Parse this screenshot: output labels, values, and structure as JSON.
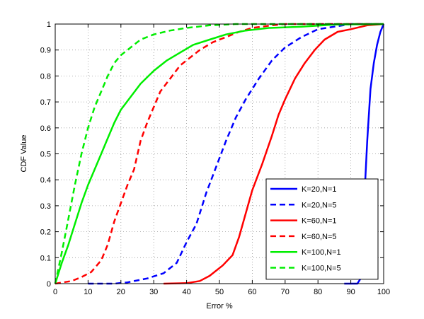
{
  "chart_data": {
    "type": "line",
    "title": "",
    "xlabel": "Error %",
    "ylabel": "CDF Value",
    "xlim": [
      0,
      100
    ],
    "ylim": [
      0,
      1
    ],
    "xticks": [
      "0",
      "10",
      "20",
      "30",
      "40",
      "50",
      "60",
      "70",
      "80",
      "90",
      "100"
    ],
    "yticks": [
      "0",
      "0.1",
      "0.2",
      "0.3",
      "0.4",
      "0.5",
      "0.6",
      "0.7",
      "0.8",
      "0.9",
      "1"
    ],
    "grid": true,
    "legend_position": "bottom-right",
    "series": [
      {
        "name": "K=20,N=1",
        "color": "#0000ff",
        "style": "solid",
        "points": [
          [
            88,
            0
          ],
          [
            92,
            0
          ],
          [
            93,
            0.02
          ],
          [
            93.5,
            0.1
          ],
          [
            94,
            0.3
          ],
          [
            95,
            0.55
          ],
          [
            96,
            0.75
          ],
          [
            97,
            0.85
          ],
          [
            98,
            0.92
          ],
          [
            99,
            0.97
          ],
          [
            100,
            1.0
          ]
        ]
      },
      {
        "name": "K=20,N=5",
        "color": "#0000ff",
        "style": "dashed",
        "points": [
          [
            10,
            0
          ],
          [
            18,
            0
          ],
          [
            22,
            0.005
          ],
          [
            28,
            0.02
          ],
          [
            33,
            0.04
          ],
          [
            37,
            0.08
          ],
          [
            40,
            0.16
          ],
          [
            43,
            0.23
          ],
          [
            46,
            0.35
          ],
          [
            49,
            0.45
          ],
          [
            52,
            0.55
          ],
          [
            55,
            0.64
          ],
          [
            58,
            0.71
          ],
          [
            62,
            0.79
          ],
          [
            66,
            0.86
          ],
          [
            70,
            0.91
          ],
          [
            75,
            0.95
          ],
          [
            80,
            0.98
          ],
          [
            85,
            0.99
          ],
          [
            90,
            1.0
          ],
          [
            100,
            1.0
          ]
        ]
      },
      {
        "name": "K=60,N=1",
        "color": "#ff0000",
        "style": "solid",
        "points": [
          [
            33,
            0
          ],
          [
            40,
            0.002
          ],
          [
            44,
            0.01
          ],
          [
            47,
            0.03
          ],
          [
            51,
            0.07
          ],
          [
            54,
            0.11
          ],
          [
            56,
            0.18
          ],
          [
            58,
            0.27
          ],
          [
            60,
            0.36
          ],
          [
            63,
            0.46
          ],
          [
            66,
            0.57
          ],
          [
            68,
            0.65
          ],
          [
            70,
            0.71
          ],
          [
            73,
            0.79
          ],
          [
            76,
            0.85
          ],
          [
            79,
            0.9
          ],
          [
            82,
            0.94
          ],
          [
            86,
            0.97
          ],
          [
            90,
            0.98
          ],
          [
            95,
            0.995
          ],
          [
            100,
            1.0
          ]
        ]
      },
      {
        "name": "K=60,N=5",
        "color": "#ff0000",
        "style": "dashed",
        "points": [
          [
            0,
            0
          ],
          [
            5,
            0.01
          ],
          [
            8,
            0.025
          ],
          [
            11,
            0.045
          ],
          [
            14,
            0.09
          ],
          [
            16,
            0.15
          ],
          [
            18,
            0.24
          ],
          [
            20,
            0.31
          ],
          [
            22,
            0.38
          ],
          [
            24,
            0.44
          ],
          [
            26,
            0.55
          ],
          [
            28,
            0.62
          ],
          [
            30,
            0.68
          ],
          [
            32,
            0.74
          ],
          [
            35,
            0.79
          ],
          [
            38,
            0.84
          ],
          [
            41,
            0.87
          ],
          [
            44,
            0.9
          ],
          [
            48,
            0.93
          ],
          [
            52,
            0.95
          ],
          [
            56,
            0.97
          ],
          [
            60,
            0.985
          ],
          [
            66,
            0.995
          ],
          [
            70,
            1.0
          ],
          [
            100,
            1.0
          ]
        ]
      },
      {
        "name": "K=100,N=1",
        "color": "#00ee00",
        "style": "solid",
        "points": [
          [
            0,
            0
          ],
          [
            2,
            0.08
          ],
          [
            4,
            0.15
          ],
          [
            6,
            0.23
          ],
          [
            8,
            0.31
          ],
          [
            10,
            0.38
          ],
          [
            12,
            0.44
          ],
          [
            14,
            0.5
          ],
          [
            16,
            0.56
          ],
          [
            18,
            0.62
          ],
          [
            20,
            0.67
          ],
          [
            23,
            0.72
          ],
          [
            26,
            0.77
          ],
          [
            30,
            0.82
          ],
          [
            34,
            0.86
          ],
          [
            38,
            0.89
          ],
          [
            42,
            0.92
          ],
          [
            47,
            0.94
          ],
          [
            52,
            0.96
          ],
          [
            58,
            0.975
          ],
          [
            65,
            0.985
          ],
          [
            75,
            0.99
          ],
          [
            85,
            0.998
          ],
          [
            100,
            1.0
          ]
        ]
      },
      {
        "name": "K=100,N=5",
        "color": "#00ee00",
        "style": "dashed",
        "points": [
          [
            0,
            0
          ],
          [
            2,
            0.12
          ],
          [
            4,
            0.25
          ],
          [
            6,
            0.38
          ],
          [
            8,
            0.5
          ],
          [
            10,
            0.6
          ],
          [
            12,
            0.68
          ],
          [
            14,
            0.74
          ],
          [
            16,
            0.8
          ],
          [
            18,
            0.85
          ],
          [
            20,
            0.88
          ],
          [
            23,
            0.91
          ],
          [
            26,
            0.94
          ],
          [
            30,
            0.96
          ],
          [
            35,
            0.975
          ],
          [
            40,
            0.985
          ],
          [
            47,
            0.995
          ],
          [
            55,
            1.0
          ],
          [
            100,
            1.0
          ]
        ]
      }
    ]
  }
}
